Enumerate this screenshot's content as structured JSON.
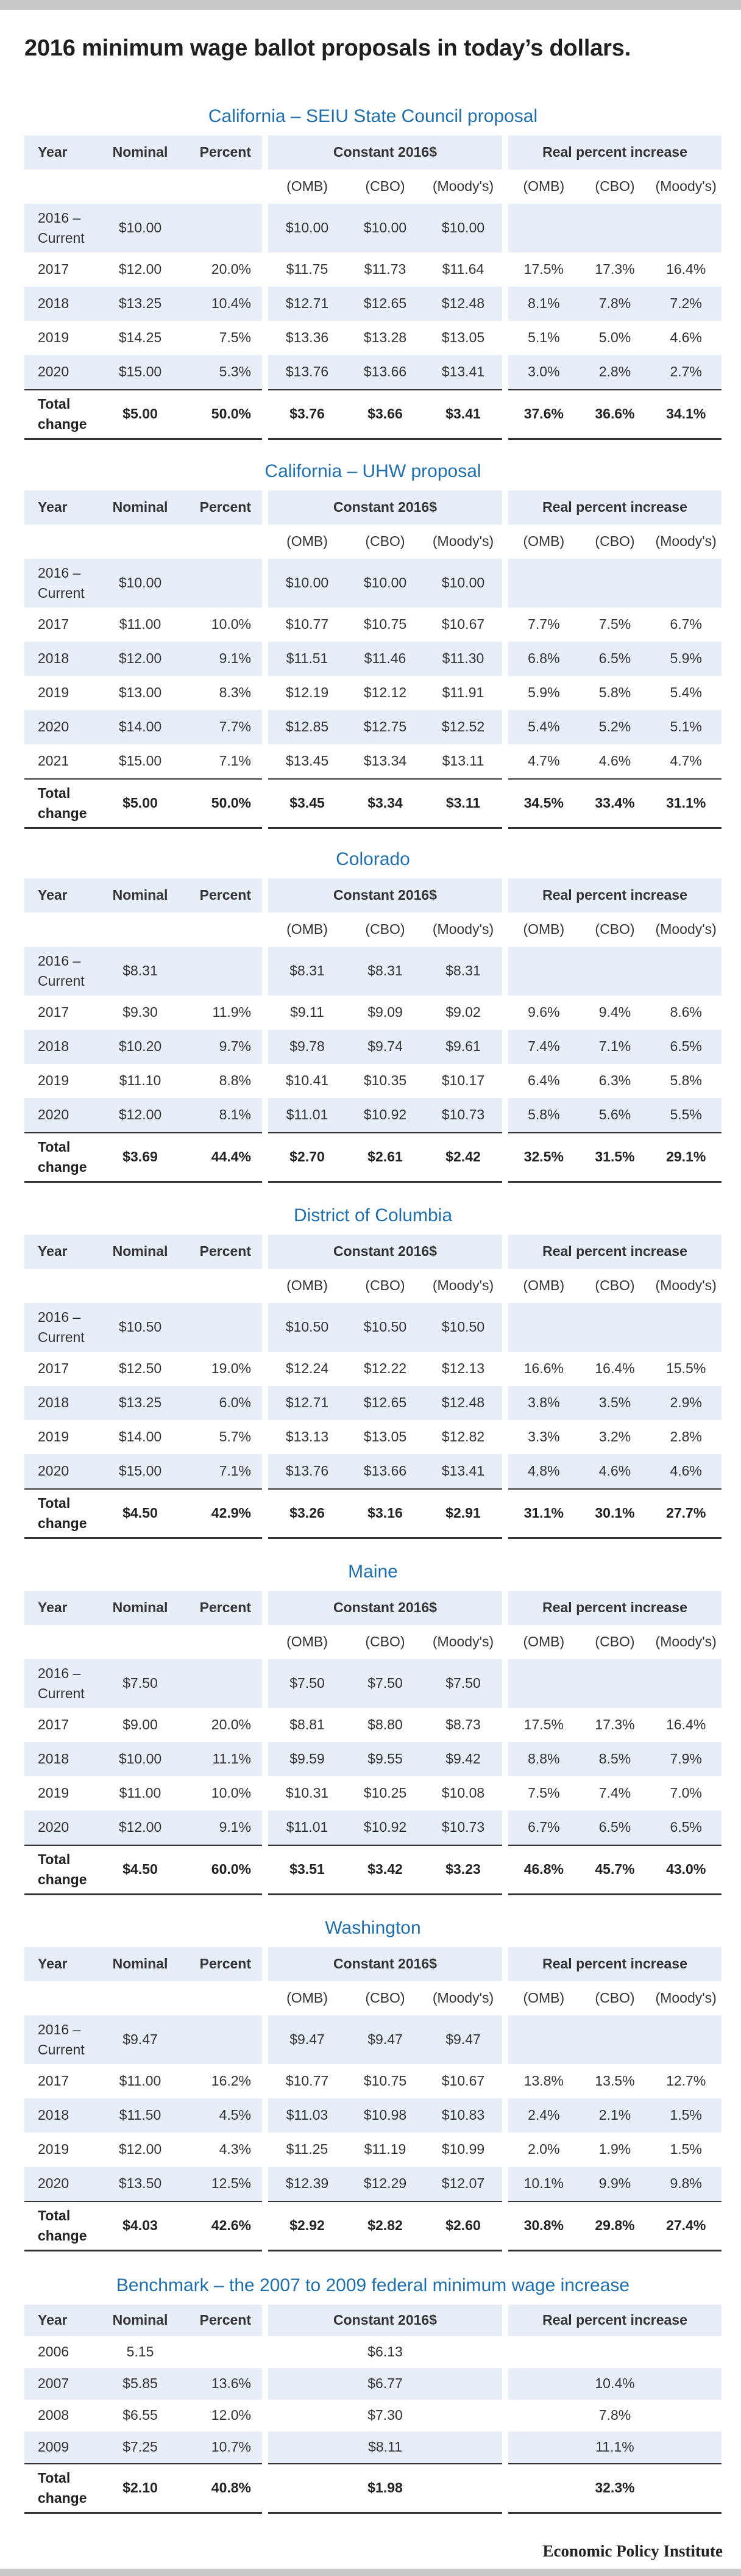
{
  "page": {
    "title": "2016 minimum wage ballot proposals in today’s dollars.",
    "credit": "Economic Policy Institute"
  },
  "headers": {
    "year": "Year",
    "nominal": "Nominal",
    "percent": "Percent",
    "constant": "Constant 2016$",
    "real": "Real percent increase",
    "omb": "(OMB)",
    "cbo": "(CBO)",
    "moodys": "(Moody's)",
    "current_line1": "2016 –",
    "current_line2": "Current",
    "total_line1": "Total",
    "total_line2": "change"
  },
  "sections": [
    {
      "title": "California – SEIU State Council proposal",
      "current": {
        "nominal": "$10.00",
        "constant": [
          "$10.00",
          "$10.00",
          "$10.00"
        ]
      },
      "rows": [
        {
          "year": "2017",
          "nominal": "$12.00",
          "percent": "20.0%",
          "constant": [
            "$11.75",
            "$11.73",
            "$11.64"
          ],
          "real": [
            "17.5%",
            "17.3%",
            "16.4%"
          ]
        },
        {
          "year": "2018",
          "nominal": "$13.25",
          "percent": "10.4%",
          "constant": [
            "$12.71",
            "$12.65",
            "$12.48"
          ],
          "real": [
            "8.1%",
            "7.8%",
            "7.2%"
          ]
        },
        {
          "year": "2019",
          "nominal": "$14.25",
          "percent": "7.5%",
          "constant": [
            "$13.36",
            "$13.28",
            "$13.05"
          ],
          "real": [
            "5.1%",
            "5.0%",
            "4.6%"
          ]
        },
        {
          "year": "2020",
          "nominal": "$15.00",
          "percent": "5.3%",
          "constant": [
            "$13.76",
            "$13.66",
            "$13.41"
          ],
          "real": [
            "3.0%",
            "2.8%",
            "2.7%"
          ]
        }
      ],
      "total": {
        "nominal": "$5.00",
        "percent": "50.0%",
        "constant": [
          "$3.76",
          "$3.66",
          "$3.41"
        ],
        "real": [
          "37.6%",
          "36.6%",
          "34.1%"
        ]
      }
    },
    {
      "title": "California – UHW proposal",
      "current": {
        "nominal": "$10.00",
        "constant": [
          "$10.00",
          "$10.00",
          "$10.00"
        ]
      },
      "rows": [
        {
          "year": "2017",
          "nominal": "$11.00",
          "percent": "10.0%",
          "constant": [
            "$10.77",
            "$10.75",
            "$10.67"
          ],
          "real": [
            "7.7%",
            "7.5%",
            "6.7%"
          ]
        },
        {
          "year": "2018",
          "nominal": "$12.00",
          "percent": "9.1%",
          "constant": [
            "$11.51",
            "$11.46",
            "$11.30"
          ],
          "real": [
            "6.8%",
            "6.5%",
            "5.9%"
          ]
        },
        {
          "year": "2019",
          "nominal": "$13.00",
          "percent": "8.3%",
          "constant": [
            "$12.19",
            "$12.12",
            "$11.91"
          ],
          "real": [
            "5.9%",
            "5.8%",
            "5.4%"
          ]
        },
        {
          "year": "2020",
          "nominal": "$14.00",
          "percent": "7.7%",
          "constant": [
            "$12.85",
            "$12.75",
            "$12.52"
          ],
          "real": [
            "5.4%",
            "5.2%",
            "5.1%"
          ]
        },
        {
          "year": "2021",
          "nominal": "$15.00",
          "percent": "7.1%",
          "constant": [
            "$13.45",
            "$13.34",
            "$13.11"
          ],
          "real": [
            "4.7%",
            "4.6%",
            "4.7%"
          ]
        }
      ],
      "total": {
        "nominal": "$5.00",
        "percent": "50.0%",
        "constant": [
          "$3.45",
          "$3.34",
          "$3.11"
        ],
        "real": [
          "34.5%",
          "33.4%",
          "31.1%"
        ]
      }
    },
    {
      "title": "Colorado",
      "current": {
        "nominal": "$8.31",
        "constant": [
          "$8.31",
          "$8.31",
          "$8.31"
        ]
      },
      "rows": [
        {
          "year": "2017",
          "nominal": "$9.30",
          "percent": "11.9%",
          "constant": [
            "$9.11",
            "$9.09",
            "$9.02"
          ],
          "real": [
            "9.6%",
            "9.4%",
            "8.6%"
          ]
        },
        {
          "year": "2018",
          "nominal": "$10.20",
          "percent": "9.7%",
          "constant": [
            "$9.78",
            "$9.74",
            "$9.61"
          ],
          "real": [
            "7.4%",
            "7.1%",
            "6.5%"
          ]
        },
        {
          "year": "2019",
          "nominal": "$11.10",
          "percent": "8.8%",
          "constant": [
            "$10.41",
            "$10.35",
            "$10.17"
          ],
          "real": [
            "6.4%",
            "6.3%",
            "5.8%"
          ]
        },
        {
          "year": "2020",
          "nominal": "$12.00",
          "percent": "8.1%",
          "constant": [
            "$11.01",
            "$10.92",
            "$10.73"
          ],
          "real": [
            "5.8%",
            "5.6%",
            "5.5%"
          ]
        }
      ],
      "total": {
        "nominal": "$3.69",
        "percent": "44.4%",
        "constant": [
          "$2.70",
          "$2.61",
          "$2.42"
        ],
        "real": [
          "32.5%",
          "31.5%",
          "29.1%"
        ]
      }
    },
    {
      "title": "District of Columbia",
      "current": {
        "nominal": "$10.50",
        "constant": [
          "$10.50",
          "$10.50",
          "$10.50"
        ]
      },
      "rows": [
        {
          "year": "2017",
          "nominal": "$12.50",
          "percent": "19.0%",
          "constant": [
            "$12.24",
            "$12.22",
            "$12.13"
          ],
          "real": [
            "16.6%",
            "16.4%",
            "15.5%"
          ]
        },
        {
          "year": "2018",
          "nominal": "$13.25",
          "percent": "6.0%",
          "constant": [
            "$12.71",
            "$12.65",
            "$12.48"
          ],
          "real": [
            "3.8%",
            "3.5%",
            "2.9%"
          ]
        },
        {
          "year": "2019",
          "nominal": "$14.00",
          "percent": "5.7%",
          "constant": [
            "$13.13",
            "$13.05",
            "$12.82"
          ],
          "real": [
            "3.3%",
            "3.2%",
            "2.8%"
          ]
        },
        {
          "year": "2020",
          "nominal": "$15.00",
          "percent": "7.1%",
          "constant": [
            "$13.76",
            "$13.66",
            "$13.41"
          ],
          "real": [
            "4.8%",
            "4.6%",
            "4.6%"
          ]
        }
      ],
      "total": {
        "nominal": "$4.50",
        "percent": "42.9%",
        "constant": [
          "$3.26",
          "$3.16",
          "$2.91"
        ],
        "real": [
          "31.1%",
          "30.1%",
          "27.7%"
        ]
      }
    },
    {
      "title": "Maine",
      "current": {
        "nominal": "$7.50",
        "constant": [
          "$7.50",
          "$7.50",
          "$7.50"
        ]
      },
      "rows": [
        {
          "year": "2017",
          "nominal": "$9.00",
          "percent": "20.0%",
          "constant": [
            "$8.81",
            "$8.80",
            "$8.73"
          ],
          "real": [
            "17.5%",
            "17.3%",
            "16.4%"
          ]
        },
        {
          "year": "2018",
          "nominal": "$10.00",
          "percent": "11.1%",
          "constant": [
            "$9.59",
            "$9.55",
            "$9.42"
          ],
          "real": [
            "8.8%",
            "8.5%",
            "7.9%"
          ]
        },
        {
          "year": "2019",
          "nominal": "$11.00",
          "percent": "10.0%",
          "constant": [
            "$10.31",
            "$10.25",
            "$10.08"
          ],
          "real": [
            "7.5%",
            "7.4%",
            "7.0%"
          ]
        },
        {
          "year": "2020",
          "nominal": "$12.00",
          "percent": "9.1%",
          "constant": [
            "$11.01",
            "$10.92",
            "$10.73"
          ],
          "real": [
            "6.7%",
            "6.5%",
            "6.5%"
          ]
        }
      ],
      "total": {
        "nominal": "$4.50",
        "percent": "60.0%",
        "constant": [
          "$3.51",
          "$3.42",
          "$3.23"
        ],
        "real": [
          "46.8%",
          "45.7%",
          "43.0%"
        ]
      }
    },
    {
      "title": "Washington",
      "current": {
        "nominal": "$9.47",
        "constant": [
          "$9.47",
          "$9.47",
          "$9.47"
        ]
      },
      "rows": [
        {
          "year": "2017",
          "nominal": "$11.00",
          "percent": "16.2%",
          "constant": [
            "$10.77",
            "$10.75",
            "$10.67"
          ],
          "real": [
            "13.8%",
            "13.5%",
            "12.7%"
          ]
        },
        {
          "year": "2018",
          "nominal": "$11.50",
          "percent": "4.5%",
          "constant": [
            "$11.03",
            "$10.98",
            "$10.83"
          ],
          "real": [
            "2.4%",
            "2.1%",
            "1.5%"
          ]
        },
        {
          "year": "2019",
          "nominal": "$12.00",
          "percent": "4.3%",
          "constant": [
            "$11.25",
            "$11.19",
            "$10.99"
          ],
          "real": [
            "2.0%",
            "1.9%",
            "1.5%"
          ]
        },
        {
          "year": "2020",
          "nominal": "$13.50",
          "percent": "12.5%",
          "constant": [
            "$12.39",
            "$12.29",
            "$12.07"
          ],
          "real": [
            "10.1%",
            "9.9%",
            "9.8%"
          ]
        }
      ],
      "total": {
        "nominal": "$4.03",
        "percent": "42.6%",
        "constant": [
          "$2.92",
          "$2.82",
          "$2.60"
        ],
        "real": [
          "30.8%",
          "29.8%",
          "27.4%"
        ]
      }
    }
  ],
  "benchmark": {
    "title": "Benchmark – the 2007 to 2009 federal minimum wage increase",
    "rows": [
      {
        "year": "2006",
        "nominal": "5.15",
        "percent": "",
        "constant": "$6.13",
        "real": ""
      },
      {
        "year": "2007",
        "nominal": "$5.85",
        "percent": "13.6%",
        "constant": "$6.77",
        "real": "10.4%"
      },
      {
        "year": "2008",
        "nominal": "$6.55",
        "percent": "12.0%",
        "constant": "$7.30",
        "real": "7.8%"
      },
      {
        "year": "2009",
        "nominal": "$7.25",
        "percent": "10.7%",
        "constant": "$8.11",
        "real": "11.1%"
      }
    ],
    "total": {
      "nominal": "$2.10",
      "percent": "40.8%",
      "constant": "$1.98",
      "real": "32.3%"
    }
  }
}
